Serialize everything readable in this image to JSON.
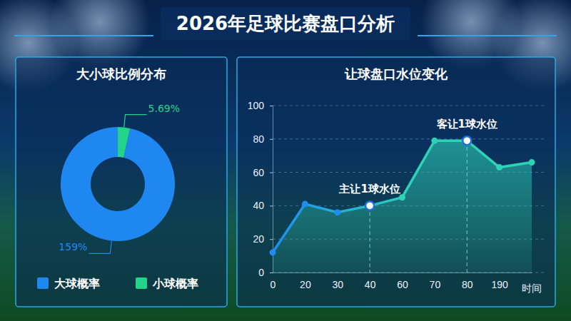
{
  "title": "2026年足球比赛盘口分析",
  "chart_data": [
    {
      "type": "donut",
      "title": "大小球比例分布",
      "categories": [
        "大球概率",
        "小球概率"
      ],
      "values": [
        159,
        5.69
      ],
      "value_labels": [
        "159%",
        "5.69%"
      ],
      "colors": [
        "#1e88f0",
        "#22d38a"
      ],
      "data_labels": true,
      "legend": "bottom"
    },
    {
      "type": "area",
      "title": "让球盘口水位变化",
      "categories": [
        "0",
        "20",
        "30",
        "40",
        "60",
        "70",
        "80",
        "190",
        null
      ],
      "x_label": "时间",
      "values": [
        12,
        41,
        36,
        40,
        45,
        79,
        79,
        63,
        66
      ],
      "color": "#2ed3b7",
      "ylim": [
        0,
        100
      ],
      "yticks": [
        0,
        20,
        40,
        60,
        80,
        100
      ],
      "grid": true,
      "marker": "circle",
      "annotations": [
        {
          "text": "主让1球水位",
          "index": 3
        },
        {
          "text": "客让1球水位",
          "index": 6
        }
      ]
    }
  ]
}
